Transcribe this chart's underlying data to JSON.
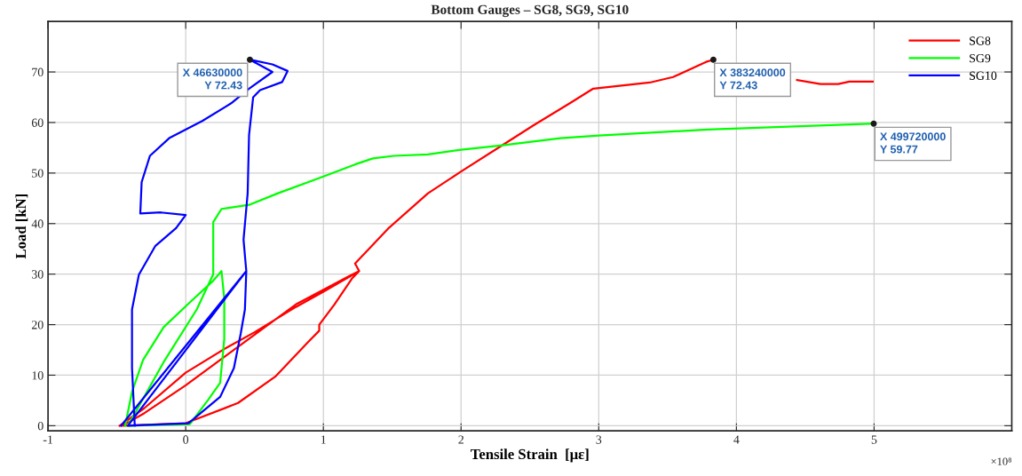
{
  "chart_data": {
    "type": "line",
    "title": "Bottom Gauges – SG8, SG9, SG10",
    "xlabel": "Tensile Strain  [με]",
    "ylabel": "Load [kN]",
    "xlim": [
      -1,
      6
    ],
    "ylim": [
      -1,
      80
    ],
    "xticks": [
      -1,
      0,
      1,
      2,
      3,
      4,
      5
    ],
    "yticks": [
      0,
      10,
      20,
      30,
      40,
      50,
      60,
      70
    ],
    "grid": true,
    "legend": "top right",
    "line_style": "solid",
    "series": [
      {
        "name": "SG8",
        "color": "#ff0000",
        "x": [
          -0.48,
          -0.3,
          0,
          0.3,
          0.5,
          0.8,
          1.0,
          1.26,
          1.18,
          0.8,
          0.3,
          0,
          -0.3,
          -0.46,
          0,
          0.38,
          0.65,
          0.89,
          0.97,
          0.97,
          1.08,
          1.21,
          1.26,
          1.23,
          1.47,
          1.76,
          2.0,
          2.3,
          2.53,
          2.79,
          2.96,
          3.37,
          3.54,
          3.78,
          3.8324,
          null,
          4.44,
          4.61,
          4.74,
          4.82,
          4.99
        ],
        "values": [
          0,
          3.5,
          10.5,
          15.5,
          18.5,
          23.5,
          26.5,
          30.6,
          29.5,
          24,
          14,
          8,
          2.5,
          0,
          0.5,
          4.5,
          9.7,
          16.6,
          18.8,
          20,
          24,
          29.2,
          30.6,
          32.1,
          39,
          46,
          50.3,
          55.5,
          59.5,
          63.8,
          66.7,
          67.9,
          69,
          72,
          72.43,
          null,
          68.4,
          67.6,
          67.6,
          68.1,
          68.1
        ]
      },
      {
        "name": "SG9",
        "color": "#00ff00",
        "x": [
          -0.44,
          -0.39,
          -0.31,
          -0.16,
          0.03,
          0.2,
          0.26,
          0.28,
          0.28,
          0.25,
          0.16,
          0.03,
          -0.42,
          -0.16,
          0.08,
          0.2,
          0.2,
          0.26,
          0.46,
          0.67,
          0.97,
          1.23,
          1.36,
          1.51,
          1.76,
          2.0,
          2.3,
          2.72,
          3.0,
          3.79,
          4.9972
        ],
        "values": [
          0,
          6.7,
          13,
          19.5,
          24.4,
          28.7,
          30.6,
          25.2,
          17.1,
          8.5,
          5,
          0.3,
          0,
          12.6,
          23,
          30,
          40.3,
          42.9,
          43.7,
          46,
          49,
          51.7,
          52.9,
          53.4,
          53.7,
          54.6,
          55.5,
          56.9,
          57.4,
          58.6,
          59.77
        ]
      },
      {
        "name": "SG10",
        "color": "#0000ff",
        "x": [
          -0.47,
          0.44,
          -0.42,
          0.02,
          0.25,
          0.35,
          0.4,
          0.43,
          0.44,
          0.42,
          0.45,
          0.46,
          0.49,
          0.54,
          0.7,
          0.74,
          0.63,
          0.4663,
          0.63,
          0.46,
          0.33,
          0.12,
          -0.12,
          -0.26,
          -0.32,
          -0.33,
          -0.18,
          0,
          -0.07,
          -0.22,
          -0.34,
          -0.39,
          -0.39,
          -0.37
        ],
        "values": [
          0,
          30.6,
          0,
          0.5,
          5.7,
          11.4,
          18.3,
          23,
          30.6,
          36.8,
          46,
          57.5,
          65,
          66.4,
          68,
          70.2,
          71.5,
          72.43,
          70,
          66.7,
          63.8,
          60.3,
          56.9,
          53.4,
          48.2,
          42,
          42.2,
          41.7,
          39.1,
          35.6,
          29.9,
          23,
          11.4,
          0
        ]
      }
    ],
    "annotations": [
      {
        "text": "X 46630000\nY 72.43",
        "x": 0.4663,
        "y": 72.43
      },
      {
        "text": "X 383240000\nY 72.43",
        "x": 3.8324,
        "y": 72.43
      },
      {
        "text": "X 499720000\nY 59.77",
        "x": 4.9972,
        "y": 59.77
      },
      "×10⁸"
    ]
  }
}
